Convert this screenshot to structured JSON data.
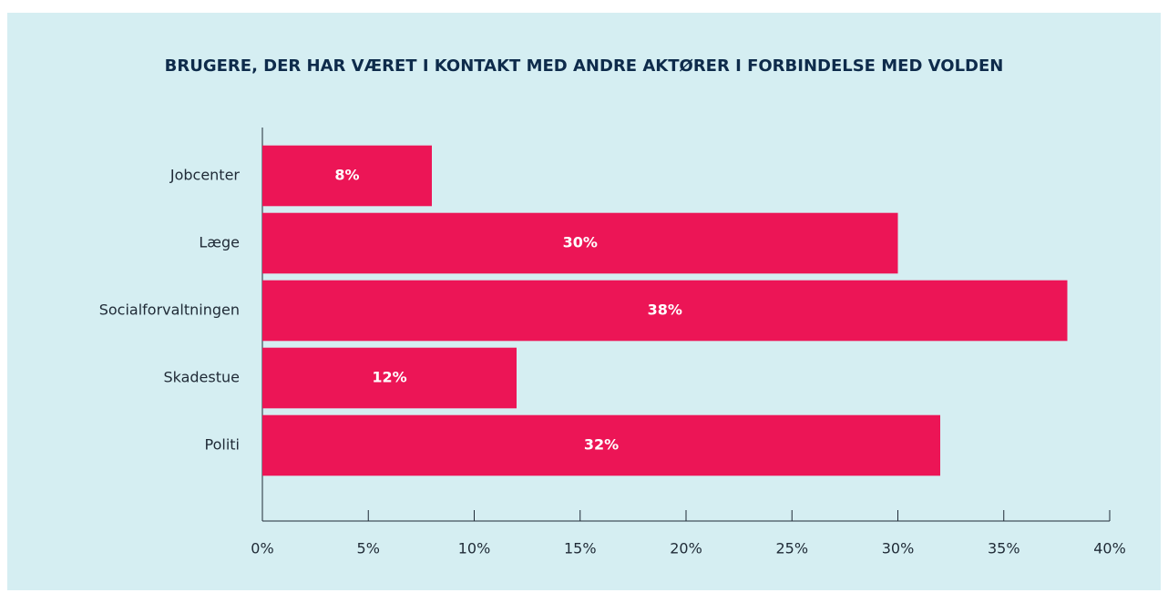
{
  "chart_data": {
    "type": "bar",
    "orientation": "horizontal",
    "title": "BRUGERE, DER HAR VÆRET I KONTAKT MED ANDRE AKTØRER I FORBINDELSE MED VOLDEN",
    "categories": [
      "Jobcenter",
      "Læge",
      "Socialforvaltningen",
      "Skadestue",
      "Politi"
    ],
    "values": [
      8,
      30,
      38,
      12,
      32
    ],
    "value_labels": [
      "8%",
      "30%",
      "38%",
      "12%",
      "32%"
    ],
    "color": "#ec1556",
    "xlim": [
      0,
      40
    ],
    "xticks": [
      {
        "value": 0,
        "label": "0%"
      },
      {
        "value": 5,
        "label": "5%"
      },
      {
        "value": 10,
        "label": "10%"
      },
      {
        "value": 15,
        "label": "15%"
      },
      {
        "value": 20,
        "label": "20%"
      },
      {
        "value": 25,
        "label": "25%"
      },
      {
        "value": 30,
        "label": "30%"
      },
      {
        "value": 35,
        "label": "35%"
      },
      {
        "value": 40,
        "label": "40%"
      }
    ],
    "grid": false
  }
}
